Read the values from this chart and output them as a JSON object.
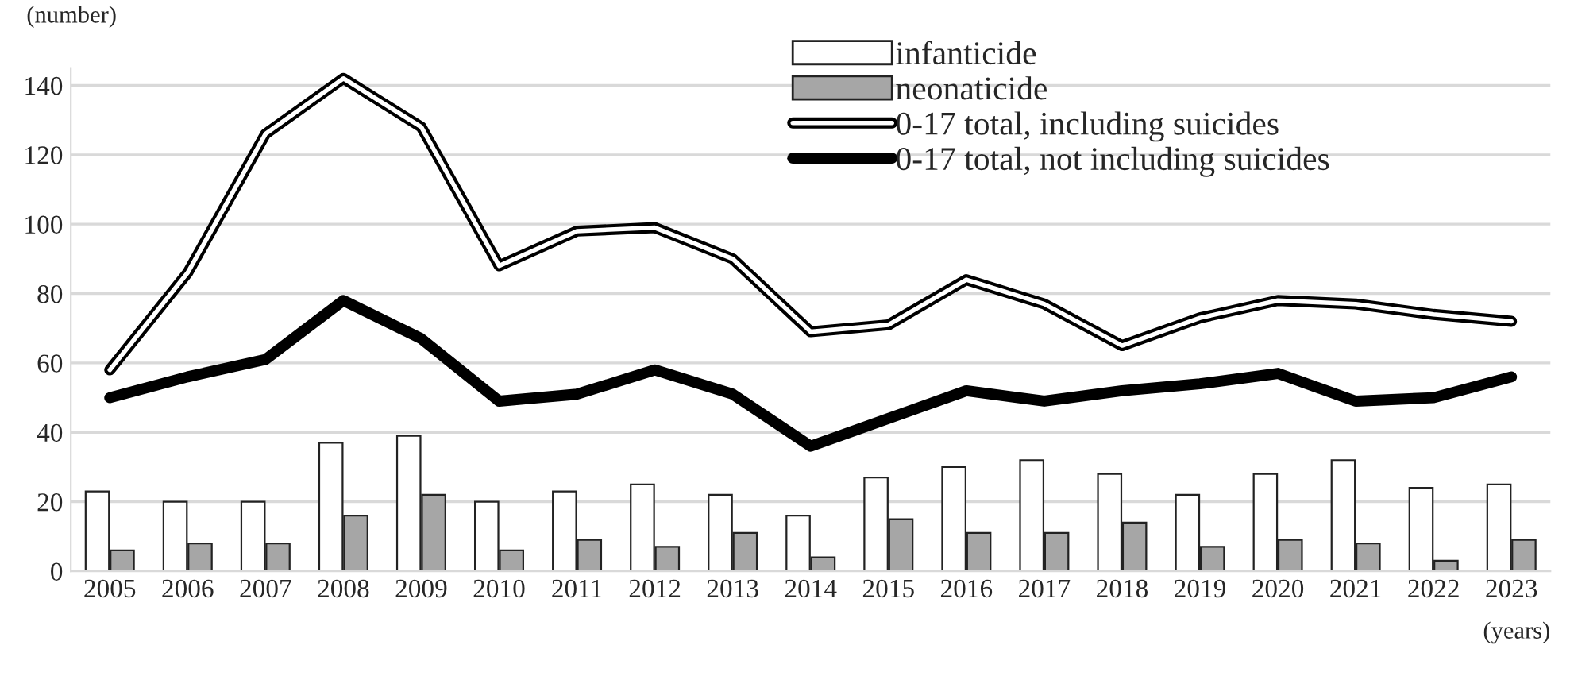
{
  "chart_data": {
    "type": "bar",
    "ylabel": "(number)",
    "xlabel": "(years)",
    "categories": [
      "2005",
      "2006",
      "2007",
      "2008",
      "2009",
      "2010",
      "2011",
      "2012",
      "2013",
      "2014",
      "2015",
      "2016",
      "2017",
      "2018",
      "2019",
      "2020",
      "2021",
      "2022",
      "2023"
    ],
    "series": [
      {
        "name": "infanticide",
        "color": "#ffffff",
        "values": [
          23,
          20,
          20,
          37,
          39,
          20,
          23,
          25,
          22,
          16,
          27,
          30,
          32,
          28,
          22,
          28,
          32,
          24,
          25
        ]
      },
      {
        "name": "neonaticide",
        "color": "#a6a6a6",
        "values": [
          6,
          8,
          8,
          16,
          22,
          6,
          9,
          7,
          11,
          4,
          15,
          11,
          11,
          14,
          7,
          9,
          8,
          3,
          9
        ]
      },
      {
        "name": "0-17 total, including suicides",
        "type": "line",
        "color": "#000000",
        "values": [
          58,
          86,
          126,
          142,
          128,
          88,
          98,
          99,
          90,
          69,
          71,
          84,
          77,
          65,
          73,
          78,
          77,
          74,
          72
        ]
      },
      {
        "name": "0-17 total, not including suicides",
        "type": "line",
        "color": "#000000",
        "values": [
          50,
          56,
          61,
          78,
          67,
          49,
          51,
          58,
          51,
          36,
          44,
          52,
          49,
          52,
          54,
          57,
          49,
          50,
          56
        ]
      }
    ],
    "ylim": [
      0,
      145
    ],
    "yticks": [
      0,
      20,
      40,
      60,
      80,
      100,
      120,
      140
    ],
    "grid": "y",
    "legend": "top right"
  }
}
